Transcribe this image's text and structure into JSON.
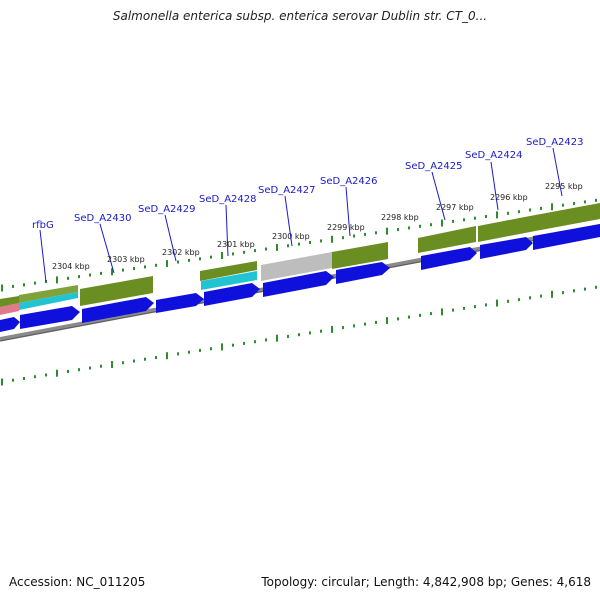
{
  "title": "Salmonella enterica subsp. enterica serovar Dublin str. CT_0...",
  "footer": {
    "accession": "Accession: NC_011205",
    "summary": "Topology: circular; Length: 4,842,908 bp; Genes: 4,618"
  },
  "colors": {
    "gene_label": "#1a1acc",
    "arrow_blue": "#1010dd",
    "olive": "#6b8e23",
    "cyan": "#22c4d4",
    "pink": "#e07a8a",
    "gray": "#bdbdbd",
    "tick_green": "#2e8b2e"
  },
  "gene_labels": [
    "rfbG",
    "SeD_A2430",
    "SeD_A2429",
    "SeD_A2428",
    "SeD_A2427",
    "SeD_A2426",
    "SeD_A2425",
    "SeD_A2424",
    "SeD_A2423"
  ],
  "position_labels": [
    "2304 kbp",
    "2303 kbp",
    "2302 kbp",
    "2301 kbp",
    "2300 kbp",
    "2299 kbp",
    "2298 kbp",
    "2297 kbp",
    "2296 kbp",
    "2295 kbp"
  ]
}
